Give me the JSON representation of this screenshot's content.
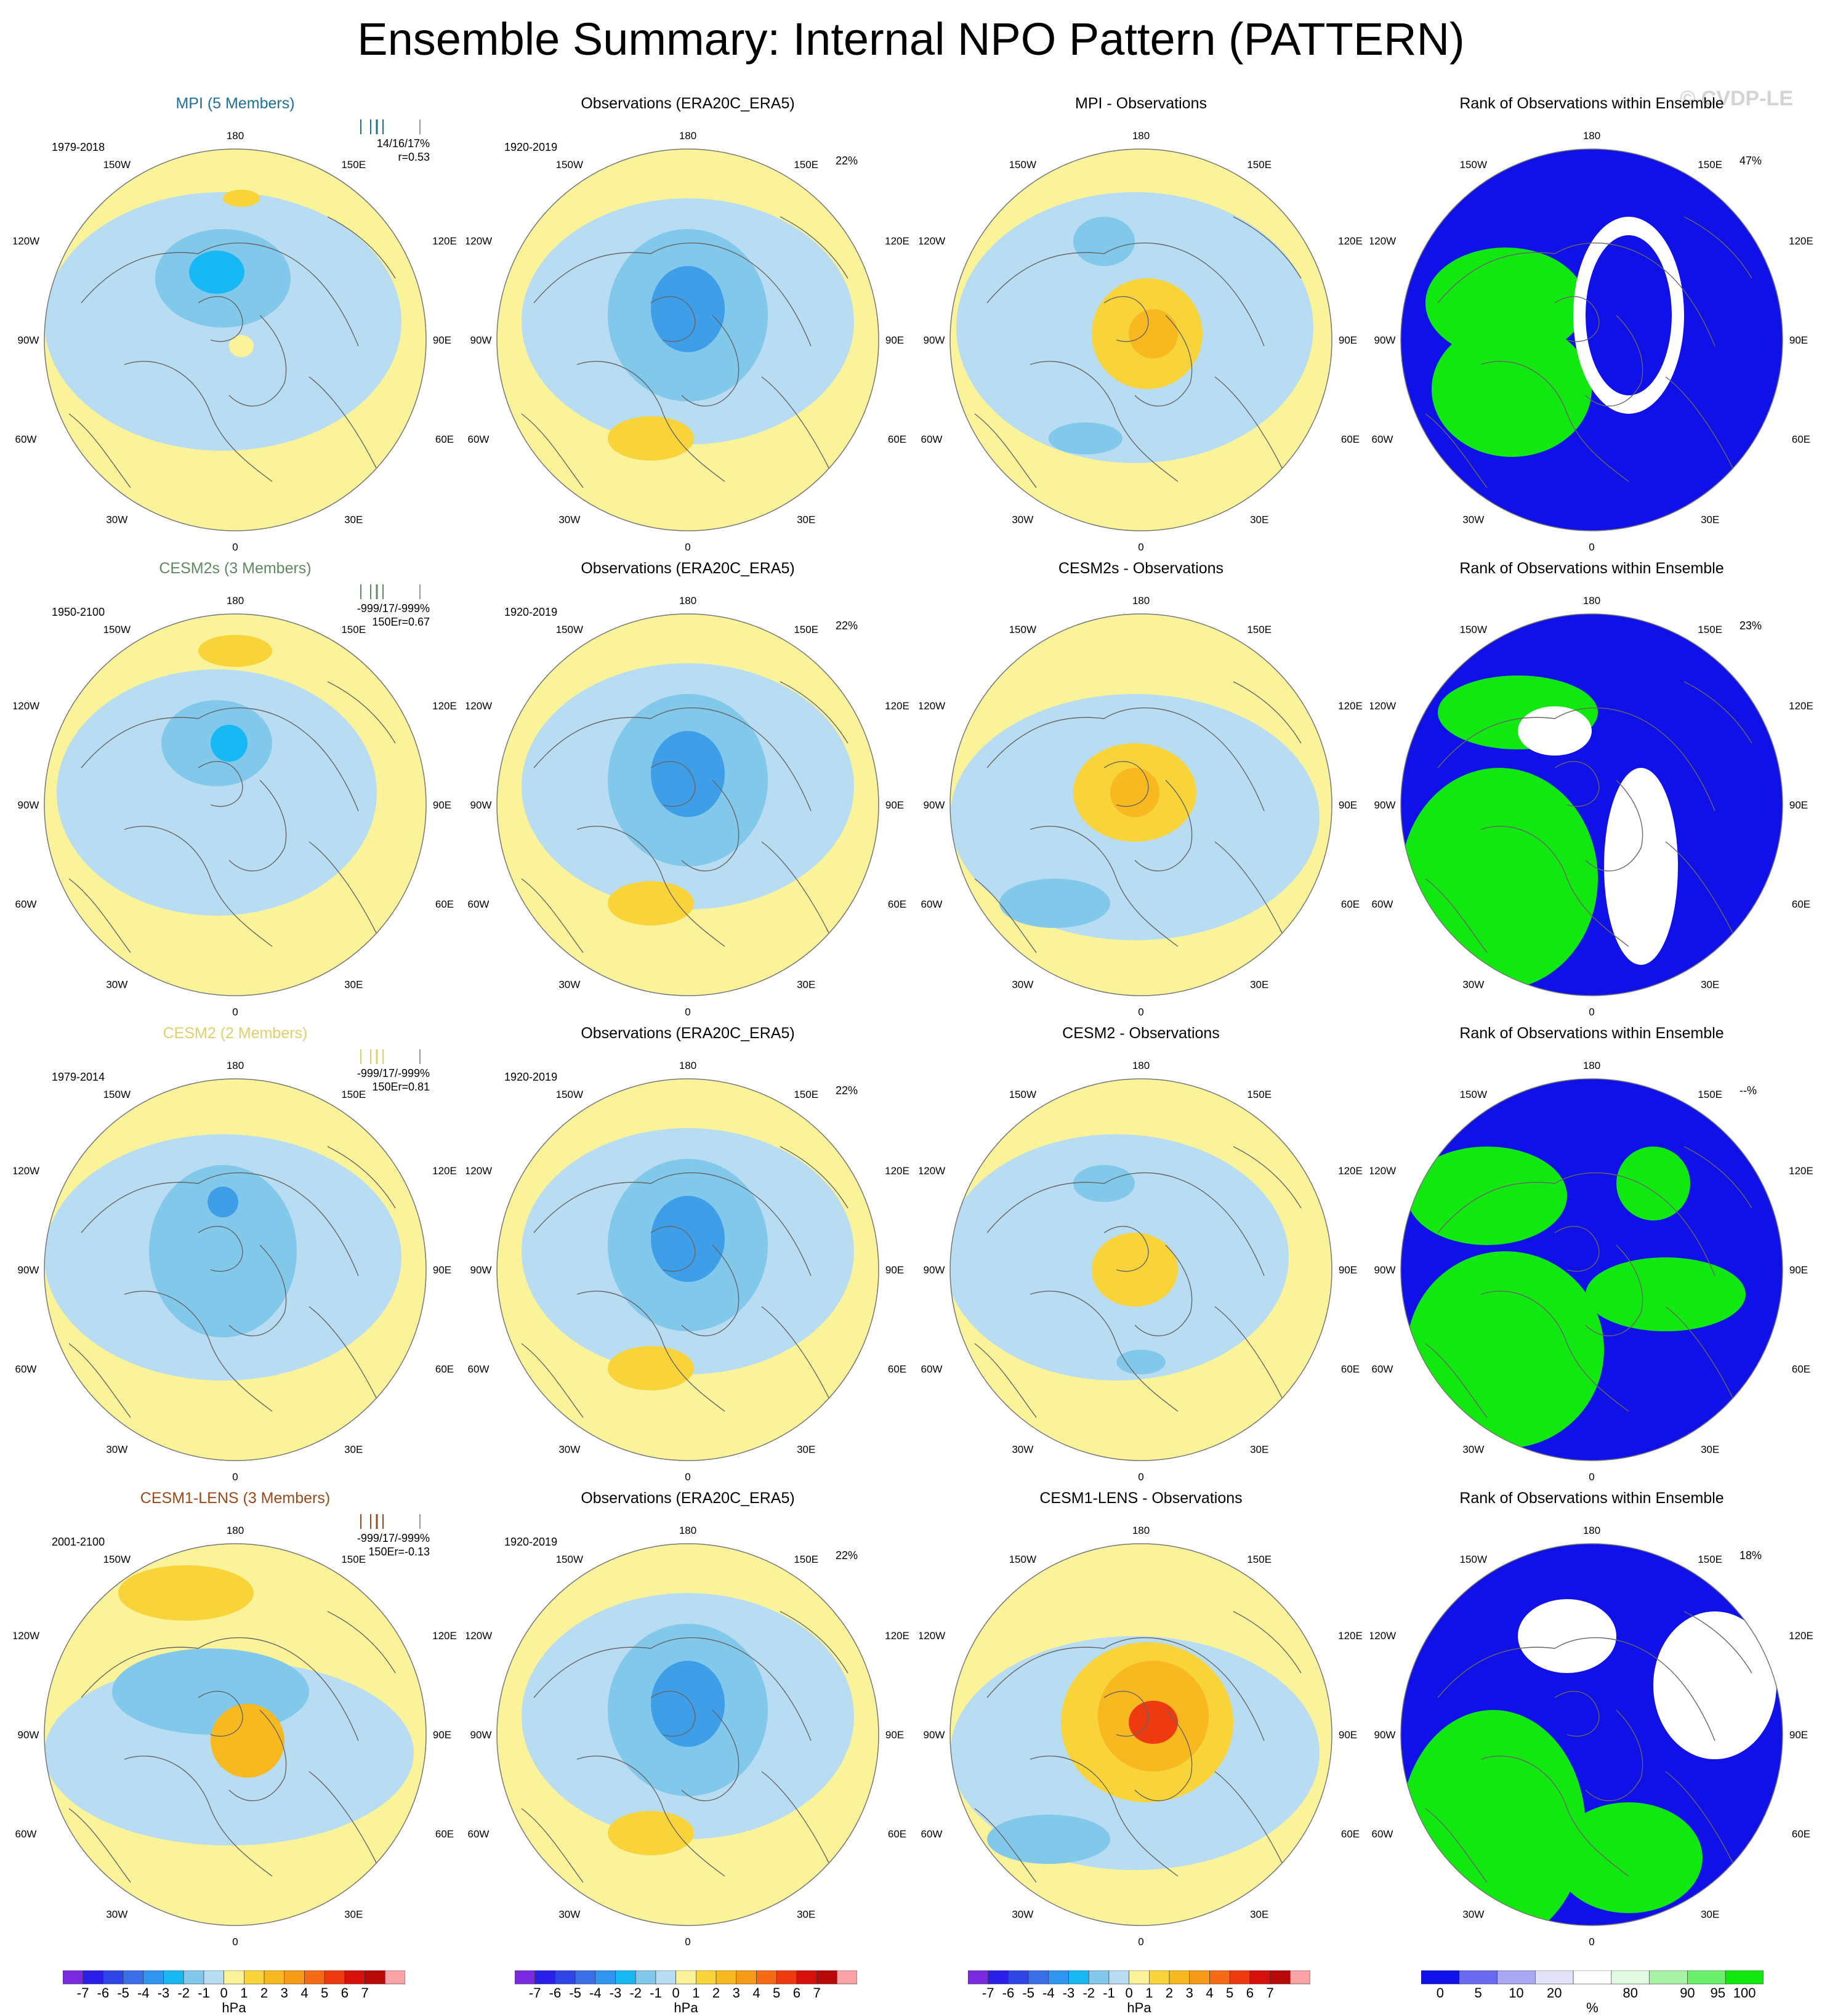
{
  "title": "Ensemble Summary: Internal NPO Pattern (PATTERN)",
  "copyright": "© CVDP-LE",
  "lon_labels": {
    "l180": "180",
    "l150w": "150W",
    "l150e": "150E",
    "l120w": "120W",
    "l120e": "120E",
    "l90w": "90W",
    "l90e": "90E",
    "l60w": "60W",
    "l60e": "60E",
    "l30w": "30W",
    "l30e": "30E",
    "l0": "0"
  },
  "rows": [
    {
      "model_title": "MPI (5 Members)",
      "model_color": "#1f6f98",
      "period": "1979-2018",
      "stats1": "14/16/17%",
      "stats2": "r=0.53",
      "obs_title": "Observations (ERA20C_ERA5)",
      "obs_period": "1920-2019",
      "obs_pct": "22%",
      "diff_title": "MPI - Observations",
      "rank_title": "Rank of Observations within Ensemble",
      "rank_pct": "47%"
    },
    {
      "model_title": "CESM2s (3 Members)",
      "model_color": "#5f8a5f",
      "period": "1950-2100",
      "stats1": "-999/17/-999%",
      "stats2": "150Er=0.67",
      "obs_title": "Observations (ERA20C_ERA5)",
      "obs_period": "1920-2019",
      "obs_pct": "22%",
      "diff_title": "CESM2s - Observations",
      "rank_title": "Rank of Observations within Ensemble",
      "rank_pct": "23%"
    },
    {
      "model_title": "CESM2 (2 Members)",
      "model_color": "#e0cf6c",
      "period": "1979-2014",
      "stats1": "-999/17/-999%",
      "stats2": "150Er=0.81",
      "obs_title": "Observations (ERA20C_ERA5)",
      "obs_period": "1920-2019",
      "obs_pct": "22%",
      "diff_title": "CESM2 - Observations",
      "rank_title": "Rank of Observations within Ensemble",
      "rank_pct": "--%"
    },
    {
      "model_title": "CESM1-LENS (3 Members)",
      "model_color": "#9a4a1a",
      "period": "2001-2100",
      "stats1": "-999/17/-999%",
      "stats2": "150Er=-0.13",
      "obs_title": "Observations (ERA20C_ERA5)",
      "obs_period": "1920-2019",
      "obs_pct": "22%",
      "diff_title": "CESM1-LENS - Observations",
      "rank_title": "Rank of Observations within Ensemble",
      "rank_pct": "18%"
    }
  ],
  "colorbar_hpa": {
    "labels": [
      "-7",
      "-6",
      "-5",
      "-4",
      "-3",
      "-2",
      "-1",
      "0",
      "1",
      "2",
      "3",
      "4",
      "5",
      "6",
      "7"
    ],
    "unit": "hPa",
    "colors": [
      "#7a2be0",
      "#2a1fe8",
      "#2f45e6",
      "#3a6fe8",
      "#2f95f0",
      "#18b8f5",
      "#82c8ea",
      "#b8dcf2",
      "#fbf39a",
      "#f8d43a",
      "#f8b820",
      "#f79a18",
      "#f56a14",
      "#ee3a10",
      "#d8100c",
      "#b80808",
      "#f9a3a6"
    ]
  },
  "colorbar_pct": {
    "labels": [
      "0",
      "5",
      "10",
      "20",
      "80",
      "90",
      "95",
      "100"
    ],
    "unit": "%",
    "colors": [
      "#1010e8",
      "#6a6af0",
      "#a8a8f2",
      "#e2e2f8",
      "#ffffff",
      "#e2fae2",
      "#a8f2a8",
      "#6af06a",
      "#10e810"
    ]
  },
  "map_colors": {
    "yellow": "#fbf39a",
    "lightblue": "#b8dcf2",
    "midblue": "#82c8ea",
    "blue": "#3f9ee8",
    "cyan": "#18b8f5",
    "orange": "#f8d43a",
    "darkorange": "#f8b820",
    "red": "#ee3a10",
    "rankblue": "#1010e8",
    "rankgreen": "#10e810"
  }
}
